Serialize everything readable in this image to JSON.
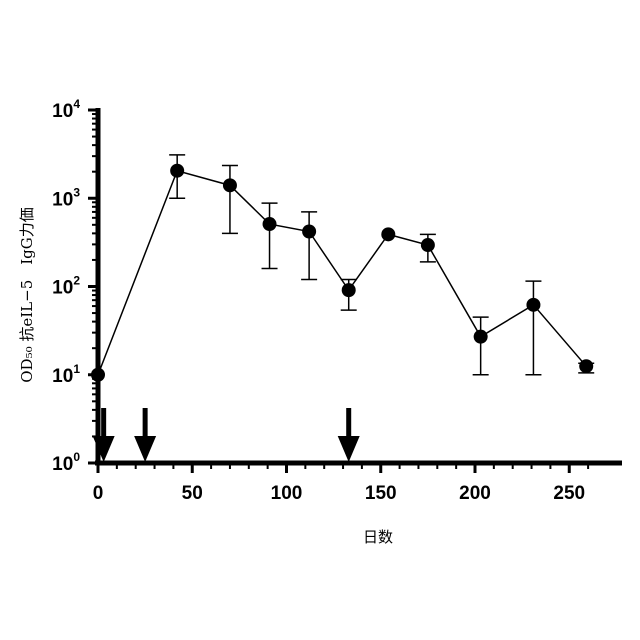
{
  "chart_data": {
    "type": "line",
    "xlabel": "日数",
    "ylabel": "OD₅₀ 抗eIL−5　IgG力価",
    "xlim": [
      0,
      270
    ],
    "ylim": [
      1,
      10000
    ],
    "yscale": "log",
    "grid": false,
    "x_ticks": [
      0,
      50,
      100,
      150,
      200,
      250
    ],
    "y_ticks": [
      {
        "value": 1,
        "base": "10",
        "exp": "0"
      },
      {
        "value": 10,
        "base": "10",
        "exp": "1"
      },
      {
        "value": 100,
        "base": "10",
        "exp": "2"
      },
      {
        "value": 1000,
        "base": "10",
        "exp": "3"
      },
      {
        "value": 10000,
        "base": "10",
        "exp": "4"
      }
    ],
    "series": [
      {
        "x": [
          0,
          42,
          70,
          91,
          112,
          133,
          154,
          175,
          203,
          231,
          259
        ],
        "y": [
          10,
          2050,
          1400,
          510,
          420,
          91,
          390,
          295,
          27,
          62,
          12.5
        ],
        "err_low": [
          null,
          1000,
          400,
          160,
          120,
          54,
          null,
          190,
          10,
          10,
          10.5
        ],
        "err_high": [
          null,
          3100,
          2350,
          880,
          700,
          120,
          null,
          390,
          45,
          115,
          13.5
        ]
      }
    ],
    "annotations": {
      "arrows_at_x": [
        3,
        25,
        133
      ]
    }
  }
}
